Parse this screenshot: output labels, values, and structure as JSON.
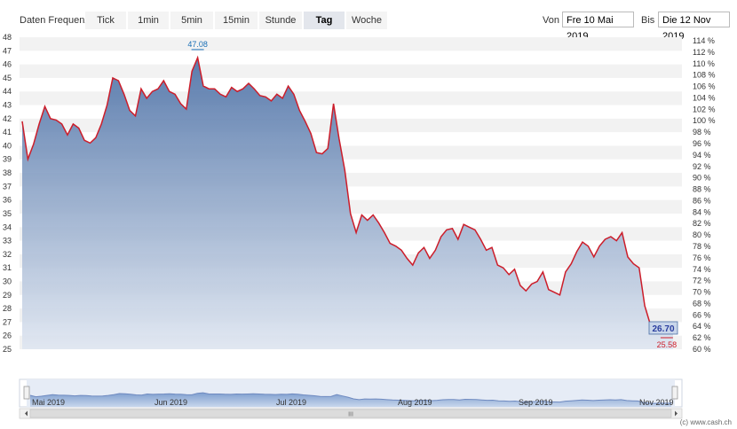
{
  "toolbar": {
    "freq_label": "Daten Frequenz",
    "buttons": [
      "Tick",
      "1min",
      "5min",
      "15min",
      "Stunde",
      "Tag",
      "Woche"
    ],
    "active": "Tag",
    "from_label": "Von",
    "from_value": "Fre 10 Mai 2019",
    "to_label": "Bis",
    "to_value": "Die 12 Nov 2019"
  },
  "chart_data": {
    "type": "area",
    "x_range": [
      "2019-05-10",
      "2019-11-12"
    ],
    "y_left_ticks": [
      25,
      26,
      27,
      28,
      29,
      30,
      31,
      32,
      33,
      34,
      35,
      36,
      37,
      38,
      39,
      40,
      41,
      42,
      43,
      44,
      45,
      46,
      47,
      48
    ],
    "y_right_ticks": [
      "60 %",
      "62 %",
      "64 %",
      "66 %",
      "68 %",
      "70 %",
      "72 %",
      "74 %",
      "76 %",
      "78 %",
      "80 %",
      "82 %",
      "84 %",
      "86 %",
      "88 %",
      "90 %",
      "92 %",
      "94 %",
      "96 %",
      "98 %",
      "100 %",
      "102 %",
      "104 %",
      "106 %",
      "108 %",
      "110 %",
      "112 %",
      "114 %"
    ],
    "ylim": [
      25,
      48
    ],
    "max_label": "47.08",
    "min_label": "25.58",
    "last_label": "26.70",
    "navigator_labels": [
      "Mai 2019",
      "Jun 2019",
      "Jul 2019",
      "Aug 2019",
      "Sep 2019",
      "Nov 2019"
    ],
    "values": [
      41.8,
      39.0,
      40.1,
      41.6,
      42.9,
      42.0,
      41.9,
      41.6,
      40.8,
      41.6,
      41.3,
      40.4,
      40.2,
      40.6,
      41.6,
      43.0,
      45.0,
      44.8,
      43.8,
      42.6,
      42.2,
      44.2,
      43.5,
      44.0,
      44.2,
      44.8,
      44.0,
      43.8,
      43.1,
      42.7,
      45.5,
      46.5,
      44.4,
      44.2,
      44.2,
      43.8,
      43.6,
      44.3,
      44.0,
      44.2,
      44.6,
      44.2,
      43.7,
      43.6,
      43.3,
      43.8,
      43.5,
      44.4,
      43.8,
      42.6,
      41.8,
      40.9,
      39.5,
      39.4,
      39.8,
      43.1,
      40.5,
      38.2,
      35.0,
      33.6,
      34.9,
      34.5,
      34.9,
      34.3,
      33.6,
      32.8,
      32.6,
      32.3,
      31.7,
      31.2,
      32.1,
      32.5,
      31.7,
      32.3,
      33.3,
      33.8,
      33.9,
      33.1,
      34.2,
      34.0,
      33.8,
      33.1,
      32.3,
      32.5,
      31.2,
      31.0,
      30.5,
      30.9,
      29.7,
      29.3,
      29.8,
      30.0,
      30.7,
      29.4,
      29.2,
      29.0,
      30.7,
      31.3,
      32.2,
      32.9,
      32.6,
      31.8,
      32.6,
      33.1,
      33.3,
      33.0,
      33.6,
      31.8,
      31.3,
      31.0,
      28.2,
      26.8,
      26.5,
      26.9,
      26.7,
      26.7
    ]
  },
  "footer": {
    "credit": "(c) www.cash.ch",
    "scroll_grip": "III"
  }
}
